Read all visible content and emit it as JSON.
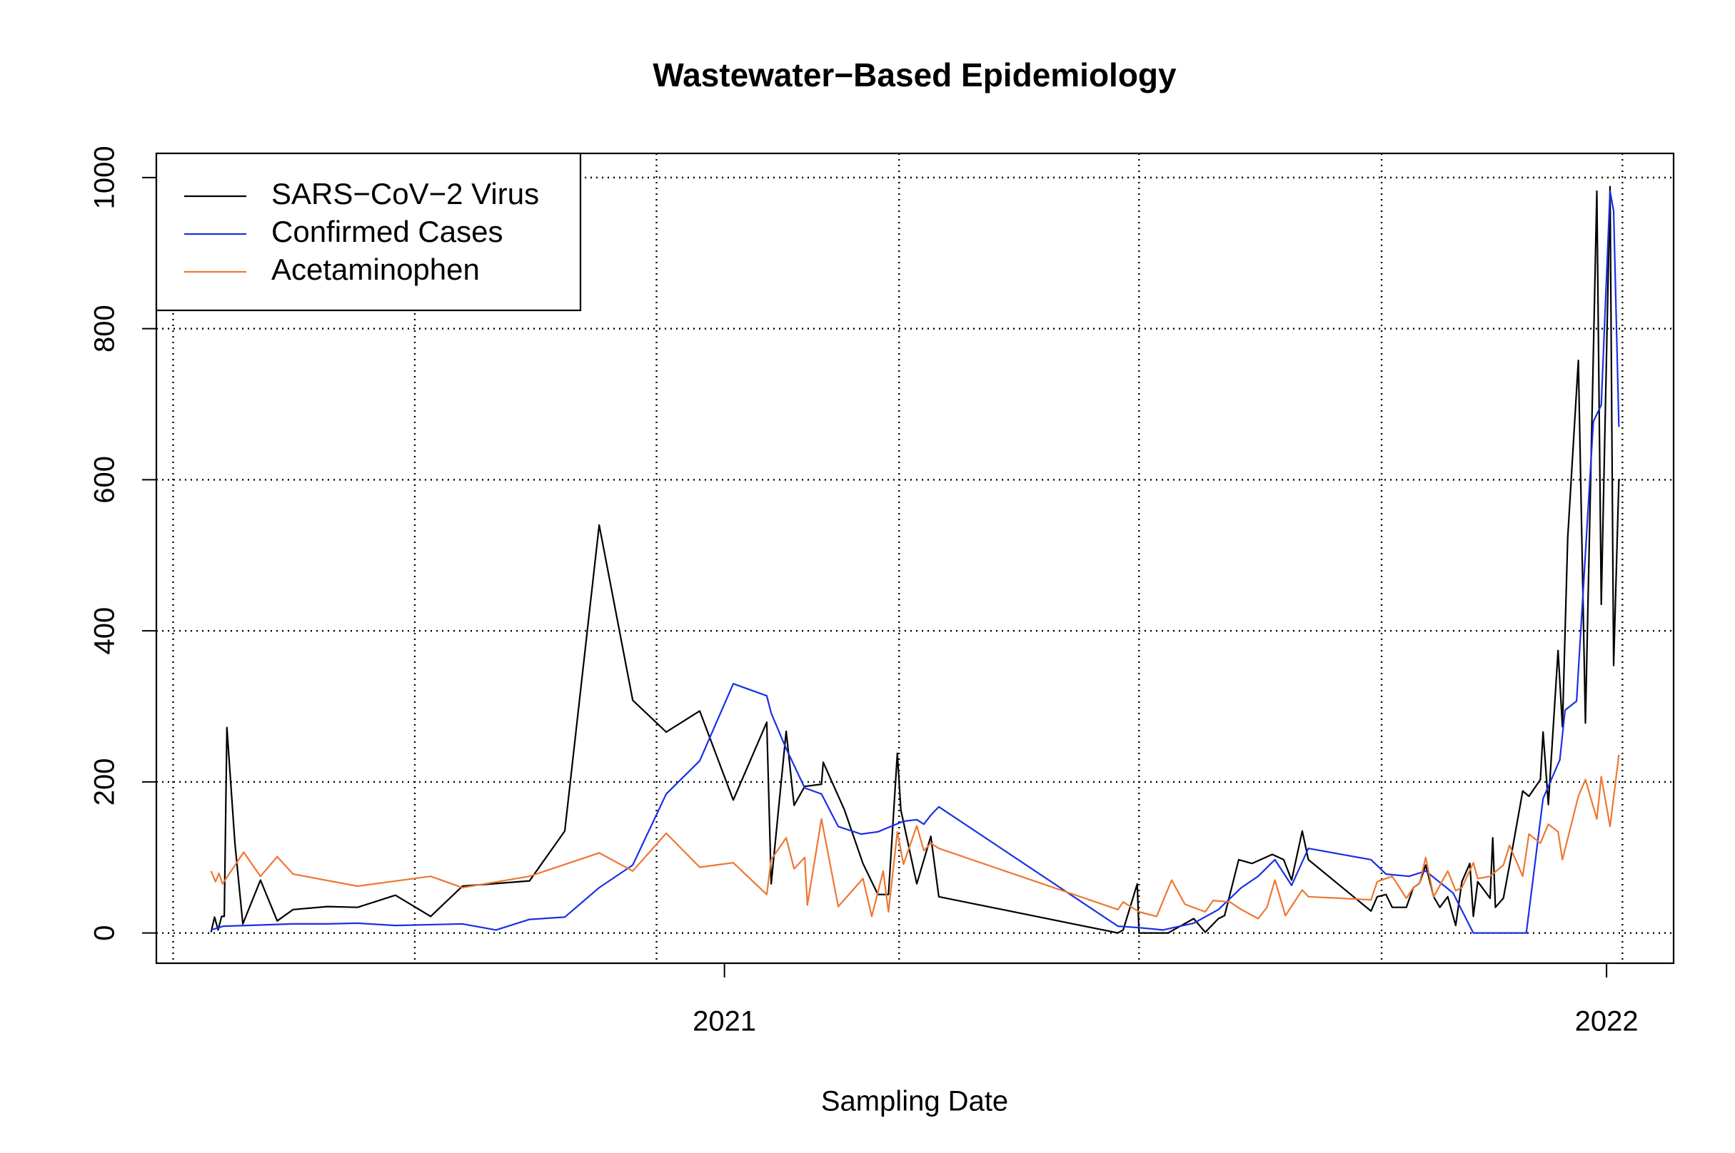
{
  "chart_data": {
    "type": "line",
    "title": "Wastewater−Based Epidemiology",
    "xlabel": "Sampling Date",
    "xlim": [
      2020.356,
      2022.076
    ],
    "ylim": [
      -40,
      1032
    ],
    "xticks": [
      2021,
      2022
    ],
    "yticks": [
      0,
      200,
      400,
      600,
      800,
      1000
    ],
    "grid": true,
    "xgrid": [
      2020.375,
      2020.649,
      2020.923,
      2021.198,
      2021.47,
      2021.745,
      2022.018
    ],
    "legend": "topleft",
    "series": [
      {
        "name": "SARS−CoV−2 Virus",
        "color": "#000000",
        "x": [
          2020.418,
          2020.422,
          2020.426,
          2020.43,
          2020.433,
          2020.436,
          2020.445,
          2020.454,
          2020.474,
          2020.493,
          2020.511,
          2020.55,
          2020.584,
          2020.627,
          2020.667,
          2020.703,
          2020.779,
          2020.819,
          2020.858,
          2020.896,
          2020.934,
          2020.972,
          2021.01,
          2021.048,
          2021.053,
          2021.07,
          2021.079,
          2021.091,
          2021.11,
          2021.112,
          2021.136,
          2021.157,
          2021.174,
          2021.186,
          2021.196,
          2021.2,
          2021.218,
          2021.234,
          2021.243,
          2021.446,
          2021.452,
          2021.468,
          2021.47,
          2021.503,
          2021.532,
          2021.545,
          2021.56,
          2021.567,
          2021.583,
          2021.598,
          2021.621,
          2021.634,
          2021.643,
          2021.655,
          2021.662,
          2021.733,
          2021.74,
          2021.75,
          2021.757,
          2021.773,
          2021.781,
          2021.788,
          2021.795,
          2021.804,
          2021.811,
          2021.82,
          2021.829,
          2021.836,
          2021.845,
          2021.849,
          2021.854,
          2021.868,
          2021.871,
          2021.874,
          2021.883,
          2021.89,
          2021.905,
          2021.912,
          2021.925,
          2021.928,
          2021.934,
          2021.945,
          2021.95,
          2021.956,
          2021.968,
          2021.976,
          2021.989,
          2021.994,
          2022.004,
          2022.008,
          2022.014
        ],
        "values": [
          1,
          21,
          4,
          22,
          22,
          272,
          119,
          12,
          70,
          16,
          31,
          35,
          34,
          50,
          22,
          62,
          69,
          135,
          540,
          308,
          266,
          294,
          176,
          279,
          65,
          267,
          169,
          194,
          197,
          226,
          163,
          92,
          51,
          51,
          238,
          163,
          65,
          128,
          48,
          0,
          4,
          65,
          0,
          0,
          19,
          1,
          19,
          23,
          97,
          92,
          104,
          97,
          70,
          135,
          97,
          29,
          48,
          51,
          34,
          34,
          60,
          66,
          90,
          48,
          34,
          48,
          10,
          68,
          92,
          22,
          68,
          46,
          126,
          34,
          46,
          90,
          188,
          181,
          203,
          266,
          170,
          374,
          273,
          523,
          758,
          278,
          982,
          435,
          988,
          354,
          601
        ]
      },
      {
        "name": "Confirmed Cases",
        "color": "#1a2fe6",
        "x": [
          2020.418,
          2020.432,
          2020.458,
          2020.511,
          2020.55,
          2020.584,
          2020.627,
          2020.703,
          2020.741,
          2020.779,
          2020.819,
          2020.858,
          2020.896,
          2020.934,
          2020.972,
          2021.01,
          2021.048,
          2021.053,
          2021.07,
          2021.091,
          2021.11,
          2021.129,
          2021.155,
          2021.174,
          2021.203,
          2021.218,
          2021.226,
          2021.234,
          2021.243,
          2021.446,
          2021.47,
          2021.497,
          2021.532,
          2021.56,
          2021.586,
          2021.605,
          2021.624,
          2021.643,
          2021.662,
          2021.733,
          2021.75,
          2021.776,
          2021.795,
          2021.826,
          2021.849,
          2021.909,
          2021.928,
          2021.947,
          2021.953,
          2021.966,
          2021.985,
          2021.994,
          2022.004,
          2022.008,
          2022.014
        ],
        "values": [
          4,
          9,
          10,
          12,
          12,
          13,
          10,
          12,
          4,
          18,
          21,
          60,
          90,
          184,
          228,
          330,
          314,
          291,
          244,
          192,
          184,
          141,
          131,
          134,
          148,
          150,
          144,
          156,
          167,
          9,
          7,
          4,
          13,
          31,
          60,
          75,
          97,
          63,
          112,
          97,
          78,
          75,
          82,
          53,
          0,
          0,
          178,
          229,
          295,
          307,
          677,
          699,
          982,
          956,
          670
        ]
      },
      {
        "name": "Acetaminophen",
        "color": "#ee7733",
        "x": [
          2020.418,
          2020.423,
          2020.427,
          2020.431,
          2020.455,
          2020.474,
          2020.493,
          2020.511,
          2020.584,
          2020.667,
          2020.703,
          2020.779,
          2020.858,
          2020.896,
          2020.934,
          2020.972,
          2021.01,
          2021.048,
          2021.053,
          2021.07,
          2021.079,
          2021.091,
          2021.094,
          2021.11,
          2021.129,
          2021.157,
          2021.167,
          2021.18,
          2021.186,
          2021.196,
          2021.203,
          2021.218,
          2021.226,
          2021.234,
          2021.243,
          2021.446,
          2021.452,
          2021.47,
          2021.49,
          2021.507,
          2021.522,
          2021.545,
          2021.554,
          2021.573,
          2021.586,
          2021.605,
          2021.615,
          2021.624,
          2021.636,
          2021.655,
          2021.662,
          2021.733,
          2021.74,
          2021.757,
          2021.773,
          2021.781,
          2021.788,
          2021.795,
          2021.804,
          2021.82,
          2021.829,
          2021.836,
          2021.849,
          2021.854,
          2021.868,
          2021.883,
          2021.89,
          2021.905,
          2021.912,
          2021.925,
          2021.934,
          2021.945,
          2021.95,
          2021.968,
          2021.976,
          2021.989,
          2021.994,
          2022.004,
          2022.014
        ],
        "values": [
          82,
          68,
          79,
          65,
          107,
          75,
          101,
          78,
          62,
          75,
          60,
          75,
          106,
          82,
          132,
          87,
          93,
          51,
          97,
          126,
          85,
          100,
          37,
          151,
          35,
          72,
          22,
          82,
          28,
          134,
          91,
          142,
          109,
          119,
          112,
          31,
          41,
          28,
          22,
          70,
          38,
          28,
          43,
          41,
          31,
          19,
          34,
          70,
          23,
          57,
          48,
          44,
          68,
          75,
          46,
          60,
          66,
          100,
          48,
          82,
          56,
          60,
          93,
          72,
          75,
          90,
          116,
          75,
          131,
          119,
          144,
          134,
          97,
          181,
          203,
          151,
          207,
          141,
          236
        ]
      }
    ]
  }
}
